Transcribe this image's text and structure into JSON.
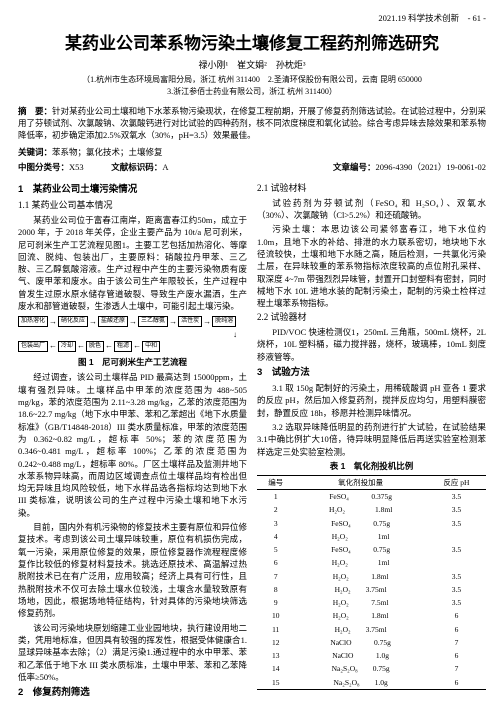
{
  "header": "2021.19 科学技术创新　- 61 -",
  "title": "某药业公司苯系物污染土壤修复工程药剂筛选研究",
  "authors": "禄小刚¹　崔文娟²　孙枕炬³",
  "affiliations": "（1.杭州市生态环境局富阳分局，浙江 杭州 311400　2.圣清环保股份有限公司，云南 昆明 650000\n3.浙江参佰士药业有限公司，浙江 杭州 311400）",
  "abstract_label": "摘　要：",
  "abstract": "针对某药业公司土壤和地下水苯系物污染现状，在修复工程前期，开展了修复药剂筛选试验。在试验过程中，分别采用了芬顿试剂、次氯酸钠、次氯酸钙进行对比试验的四种药剂，核不同浓度梯度和氧化试验。综合考虑异味去除效果和苯系物降低率，初步确定添加2.5%双氧水（30%，pH=3.5）效果最佳。",
  "keywords_label": "关键词：",
  "keywords": "苯系物；氯化技术；土壤修复",
  "clc_label": "中图分类号：",
  "clc": "X53",
  "doc_code_label": "文献标识码：",
  "doc_code": "A",
  "article_no_label": "文章编号：",
  "article_no": "2096-4390（2021）19-0061-02",
  "left": {
    "h1": "1　某药业公司土壤污染情况",
    "h1_1": "1.1 某药业公司基本情况",
    "p1": "某药业公司位于富春江南岸，距离富春江约50m，成立于2000 年，于 2018 年关停，企业主要产品为 10t/a 尼可刹米，尼可刹米生产工艺流程见图1。主要工艺包括加热溶化、等摩回流、脱纯、包装出厂，主要原料：硝酸拉丹甲苯、三乙胺、三乙醇氨酸溶液。生产过程中产生的主要污染物质有废气、废甲苯和废水。由于该公司生产年限较长，生产过程中曾发生过原水原水储存管道破裂、导致生产废水漏洒，生产废水和部管道破裂，生渗透人土壤中，可能引起土壤污染。",
    "flowchart": {
      "row1": [
        "加热溶化",
        "→",
        "硝化反应",
        "→",
        "盐酸还原",
        "→",
        "三乙醇氨",
        "→",
        "活性炭",
        "→",
        "脱纯溶"
      ],
      "row2_arrow": "↓",
      "row2": [
        "包装出厂",
        "←",
        "冷却",
        "←",
        "脱色",
        "←",
        "粗滤",
        "←",
        "中和"
      ]
    },
    "fig_caption": "图 1　尼可刹米生产工艺流程",
    "p2": "经过调查，该公司土壤样品 PID 最高达到 15000ppm，土壤有强烈异味。土壤样品中甲苯的浓度范围为 488~505 mg/kg，苯的浓度范围为 2.11~3.28 mg/kg，乙苯的浓度范围为 18.6~22.7 mg/kg（地下水中甲苯、苯和乙苯超出《地下水质量标准》（GB/T14848-2018）III 类水质量标准，甲苯的浓度范围为 0.362~0.82 mg/L，超标率 50%；苯的浓度范围为 0.346~0.481 mg/L，超标率 100%；乙苯的浓度范围为 0.242~0.488 mg/L，超标率 80%。厂区土壤样品及监测井地下水苯系物异味高，而周边区域调查点位土壤样品均有检出但均无异味且均风险较低，地下水样品选各指标均达到地下水 III 类标准，说明该公司的生产过程中污染土壤和地下水污染。",
    "p3": "目前，国内外有机污染物的修复技术主要有原位和异位修复技术。考虑到该公司土壤异味较重，原位有机损伤完成，氧一污染，采用原位修复的效果，原位修复器作流程程度修复作比较低的修复材料复技术。挑选还原技术、高温解过热脱附技术已在有广泛用，应用较高；经济上具有可行性，且热脱附技术不仅可去除土壤水位较浅，土壤含水量较致原有场地，因此，根据场地特征结构，针对具体的污染地块筛选修复药剂。",
    "p4": "该公司污染地块原划缩建工业业园地块，执行建设用地二类，凭用地标准，但因具有较强的挥发性，根据受体健康合1.显球异味基本去除；（2）满足污染1.通过程中的水中甲苯、苯和乙苯低于地下水 III 类水质标准，土壤中甲苯、苯和乙苯降低率≥50%。",
    "h2": "2　修复药剂筛选"
  },
  "right": {
    "h21": "2.1 试验材料",
    "p21": "试验药剂为芬顿试剂（FeSO₄ 和 H₂SO₄）、双氧水（30%）、次氯酸钠（Cl>5.2%）和还硫酸钠。",
    "p22": "污染土壤：本思边该公司紧邻富春江，地下水位约 1.0m，且地下水的补给、排泄的水力联系密切，地块地下水径流较快，土壤和地下水随之高，随后检测，一共氯化污染土层，在异味较重的苯系物指标浓度较高的点位附孔采样、取深度 4~7m 带强烈烈异味管，封置开口封塑料有密封，同时械地下水 10L 进地水装的配制污染土，配制的污染土检样过程土壤苯系物指标。",
    "h22": "2.2 试验器材",
    "p23": "PID/VOC 快速检测仪1，250mL 三角瓶，500mL 烧杯，2L 烧杯，10L 塑料桶，磁力搅拌器，烧杯，玻璃棒，10mL 刻度移液管等。",
    "h3": "3　试验方法",
    "h31": "3.1 取 150g 配制好的污染土，用稀硫酸调 pH 亚各 1 要求的反应 pH，然后加入修复药剂，搅拌反应均匀，用塑料膜密封，静置反应 18h，移愿并检测异味情况。",
    "h32": "3.2 选取异味降低明显的药剂进行扩大试验，在试验结果3.1中确比例扩大10倍，待异味明显降低后再送实验室检测苯样选定三处实验室检测。",
    "table_caption": "表 1　氧化剂投机比例",
    "table": {
      "columns": [
        "编号",
        "氧化剂投加量",
        "反应 pH"
      ],
      "rows": [
        [
          "1",
          "FeSO₄　　　0.375g",
          "3.5"
        ],
        [
          "2",
          "H₂O₂　　　　1.8ml",
          "3.5"
        ],
        [
          "3",
          "FeSO₄　　　0.75g",
          "3.5"
        ],
        [
          "4",
          "H₂O₂　　　　1ml",
          ""
        ],
        [
          "5",
          "FeSO₄　　　0.75g",
          "3.5"
        ],
        [
          "6",
          "H₂O₂　　　　1ml",
          ""
        ],
        [
          "7",
          "H₂O₂　　　1.8ml",
          "3.5"
        ],
        [
          "8",
          "H₂O₂　　3.75ml",
          "3.5"
        ],
        [
          "9",
          "H₂O₂　　　7.5ml",
          "3.5"
        ],
        [
          "10",
          "H₂O₂　　　1.8ml",
          "6"
        ],
        [
          "11",
          "H₂O₂　　3.75ml",
          "6"
        ],
        [
          "12",
          "NaClO　　　0.75g",
          "7"
        ],
        [
          "13",
          "NaClO　　　1.0g",
          "6"
        ],
        [
          "14",
          "Na₂S₂O₈　　0.75g",
          "7"
        ],
        [
          "15",
          "Na₂S₂O₈　　1.0g",
          "6"
        ]
      ]
    }
  }
}
